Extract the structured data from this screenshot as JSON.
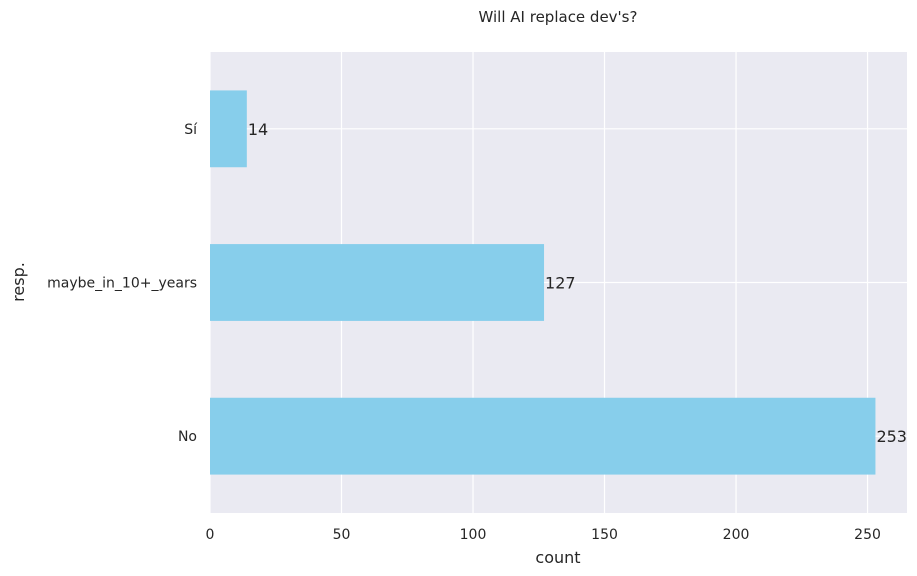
{
  "chart_data": {
    "type": "bar",
    "orientation": "horizontal",
    "title": "Will AI replace dev's?",
    "xlabel": "count",
    "ylabel": "resp.",
    "categories": [
      "Sí",
      "maybe_in_10+_years",
      "No"
    ],
    "values": [
      14,
      127,
      253
    ],
    "data_labels": [
      "14",
      "127",
      "253"
    ],
    "xlim": [
      0,
      265
    ],
    "xticks": [
      0,
      50,
      100,
      150,
      200,
      250
    ],
    "grid": true,
    "bar_color": "#87CEEB",
    "background_color": "#EAEAF2",
    "grid_color": "#FFFFFF"
  }
}
